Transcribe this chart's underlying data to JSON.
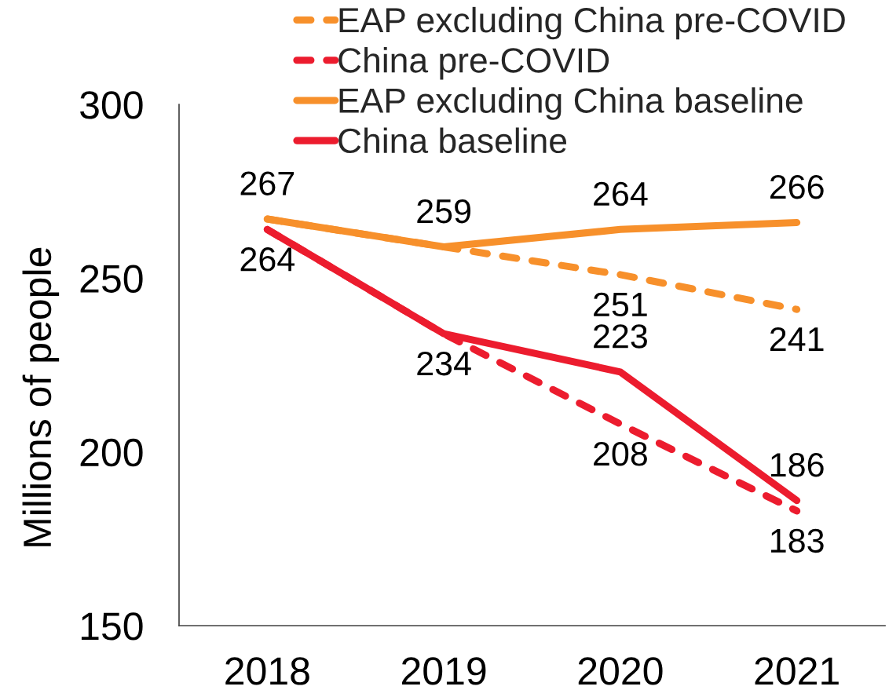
{
  "chart_data": {
    "type": "line",
    "ylabel": "Millions of people",
    "categories": [
      "2018",
      "2019",
      "2020",
      "2021"
    ],
    "series": [
      {
        "name": "EAP excluding China pre-COVID",
        "color": "#f7902b",
        "line_style": "dashed",
        "values": [
          267,
          259,
          251,
          241
        ],
        "value_labels": [
          null,
          null,
          "251",
          "241"
        ]
      },
      {
        "name": "China pre-COVID",
        "color": "#ec1c2e",
        "line_style": "dashed",
        "values": [
          264,
          234,
          208,
          183
        ],
        "value_labels": [
          null,
          null,
          "208",
          "183"
        ]
      },
      {
        "name": "EAP excluding China baseline",
        "color": "#f7902b",
        "line_style": "solid",
        "values": [
          267,
          259,
          264,
          266
        ],
        "value_labels": [
          "267",
          "259",
          "264",
          "266"
        ]
      },
      {
        "name": "China baseline",
        "color": "#ec1c2e",
        "line_style": "solid",
        "values": [
          264,
          234,
          223,
          186
        ],
        "value_labels": [
          "264",
          "234",
          "223",
          "186"
        ]
      }
    ],
    "ylim": [
      150,
      300
    ],
    "yticks": [
      150,
      200,
      250,
      300
    ],
    "grid": false,
    "legend": "top"
  }
}
